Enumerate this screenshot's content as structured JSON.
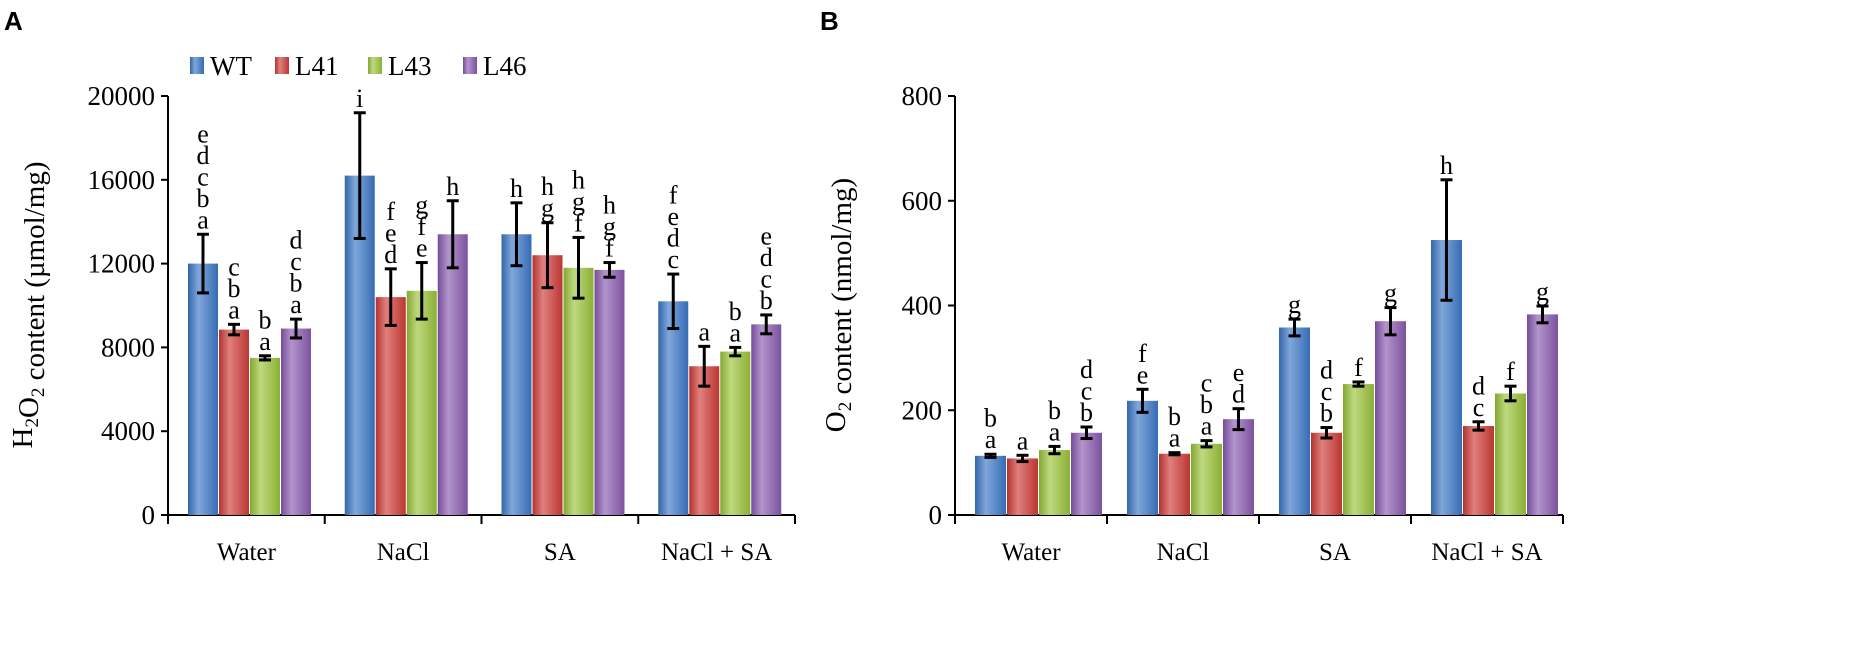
{
  "panels": {
    "a": "A",
    "b": "B"
  },
  "legend": [
    {
      "name": "WT",
      "color": "#3c78c8"
    },
    {
      "name": "L41",
      "color": "#d03c38"
    },
    {
      "name": "L43",
      "color": "#9bc43a"
    },
    {
      "name": "L46",
      "color": "#8a5bb0"
    }
  ],
  "chart_data": [
    {
      "type": "bar",
      "panel": "A",
      "ylabel": "H2O2 content (µmol/mg)",
      "ylabel_parts": {
        "prefix": "H",
        "sub1": "2",
        "mid": "O",
        "sub2": "2",
        "suffix": " content (µmol/mg)"
      },
      "ylim": [
        0,
        20000
      ],
      "yticks": [
        0,
        4000,
        8000,
        12000,
        16000,
        20000
      ],
      "categories": [
        "Water",
        "NaCl",
        "SA",
        "NaCl + SA"
      ],
      "series": [
        {
          "name": "WT",
          "values": [
            12000,
            16200,
            13400,
            10200
          ],
          "errors": [
            1400,
            3000,
            1500,
            1300
          ],
          "letters": [
            "edcba",
            "i",
            "h",
            "fedc"
          ]
        },
        {
          "name": "L41",
          "values": [
            8850,
            10400,
            12400,
            7100
          ],
          "errors": [
            250,
            1350,
            1550,
            950
          ],
          "letters": [
            "cba",
            "fed",
            "hg",
            "a"
          ]
        },
        {
          "name": "L43",
          "values": [
            7500,
            10700,
            11800,
            7800
          ],
          "errors": [
            100,
            1350,
            1450,
            200
          ],
          "letters": [
            "ba",
            "gfe",
            "hgf",
            "ba"
          ]
        },
        {
          "name": "L46",
          "values": [
            8900,
            13400,
            11700,
            9100
          ],
          "errors": [
            450,
            1600,
            350,
            450
          ],
          "letters": [
            "dcba",
            "h",
            "hgf",
            "edcb"
          ]
        }
      ]
    },
    {
      "type": "bar",
      "panel": "B",
      "ylabel": "O2 content (nmol/mg)",
      "ylabel_parts": {
        "prefix": "O",
        "sub1": "2",
        "mid": "",
        "sub2": "",
        "suffix": " content (nmol/mg)"
      },
      "ylim": [
        0,
        800
      ],
      "yticks": [
        0,
        200,
        400,
        600,
        800
      ],
      "categories": [
        "Water",
        "NaCl",
        "SA",
        "NaCl + SA"
      ],
      "series": [
        {
          "name": "WT",
          "values": [
            113,
            218,
            358,
            525
          ],
          "errors": [
            3,
            22,
            16,
            115
          ],
          "letters": [
            "ba",
            "fe",
            "g",
            "h"
          ]
        },
        {
          "name": "L41",
          "values": [
            108,
            117,
            157,
            170
          ],
          "errors": [
            6,
            2,
            10,
            8
          ],
          "letters": [
            "a",
            "ba",
            "dcb",
            "dc"
          ]
        },
        {
          "name": "L43",
          "values": [
            124,
            136,
            250,
            232
          ],
          "errors": [
            7,
            6,
            4,
            14
          ],
          "letters": [
            "ba",
            "cba",
            "f",
            "f"
          ]
        },
        {
          "name": "L46",
          "values": [
            157,
            183,
            370,
            383
          ],
          "errors": [
            11,
            20,
            26,
            16
          ],
          "letters": [
            "dcb",
            "ed",
            "g",
            "g"
          ]
        }
      ]
    }
  ]
}
